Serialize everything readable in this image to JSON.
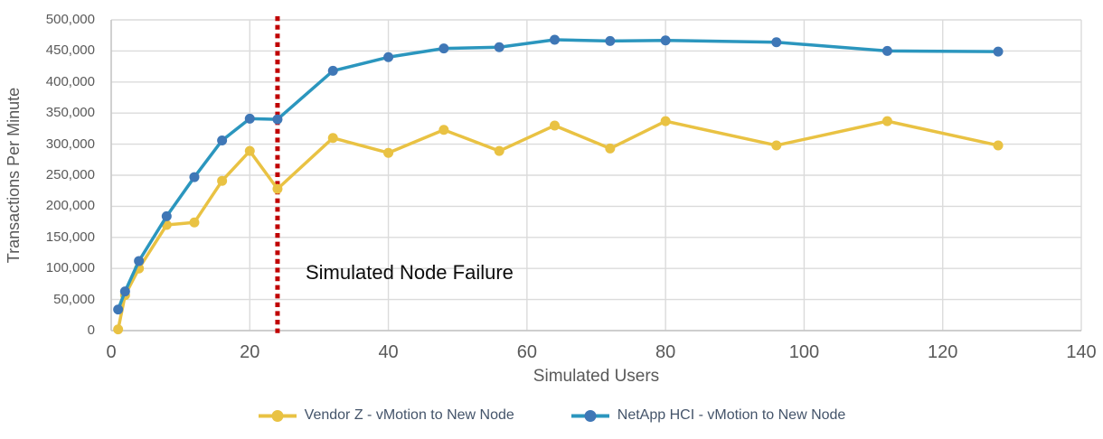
{
  "chart_data": {
    "type": "line",
    "xlabel": "Simulated Users",
    "ylabel": "Transactions Per Minute",
    "xlim": [
      0,
      140
    ],
    "ylim": [
      0,
      500000
    ],
    "grid": true,
    "legend_position": "bottom",
    "x_tick_values": [
      0,
      20,
      40,
      60,
      80,
      100,
      120,
      140
    ],
    "x_tick_labels": [
      "0",
      "20",
      "40",
      "60",
      "80",
      "100",
      "120",
      "140"
    ],
    "y_tick_values": [
      0,
      50000,
      100000,
      150000,
      200000,
      250000,
      300000,
      350000,
      400000,
      450000,
      500000
    ],
    "y_tick_labels": [
      "0",
      "50,000",
      "100,000",
      "150,000",
      "200,000",
      "250,000",
      "300,000",
      "350,000",
      "400,000",
      "450,000",
      "500,000"
    ],
    "x": [
      1,
      2,
      4,
      8,
      12,
      16,
      20,
      24,
      32,
      40,
      48,
      56,
      64,
      72,
      80,
      96,
      112,
      128
    ],
    "series": [
      {
        "name": "Vendor Z - vMotion to New Node",
        "line_color": "#E9C243",
        "marker_color": "#E9C243",
        "values": [
          2000,
          57000,
          100000,
          170000,
          174000,
          241000,
          289000,
          228000,
          310000,
          286000,
          323000,
          289000,
          330000,
          293000,
          337000,
          298000,
          337000,
          298000
        ]
      },
      {
        "name": "NetApp HCI - vMotion to New Node",
        "line_color": "#2B96BE",
        "marker_color": "#3F77B6",
        "values": [
          34000,
          63000,
          112000,
          184000,
          247000,
          306000,
          341000,
          340000,
          418000,
          440000,
          454000,
          456000,
          468000,
          466000,
          467000,
          464000,
          450000,
          449000
        ]
      }
    ],
    "annotation": {
      "text": "Simulated Node Failure",
      "x_value": 24,
      "line_color": "#C00000"
    }
  }
}
